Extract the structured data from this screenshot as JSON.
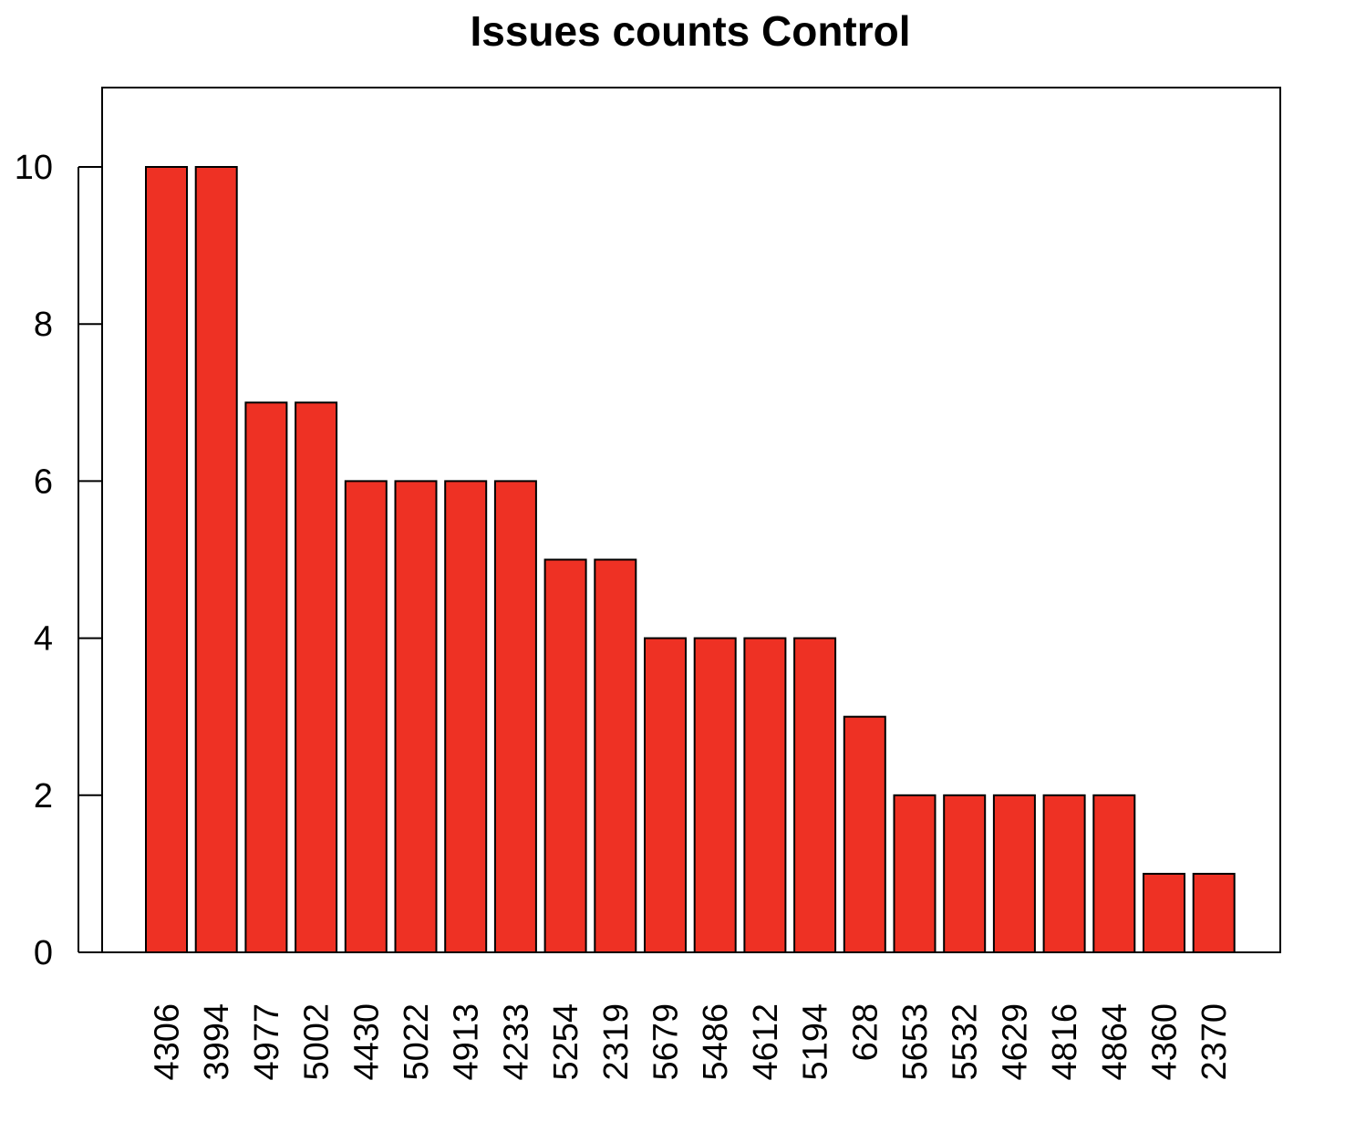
{
  "chart_data": {
    "type": "bar",
    "title": "Issues counts Control",
    "xlabel": "",
    "ylabel": "",
    "categories": [
      "4306",
      "3994",
      "4977",
      "5002",
      "4430",
      "5022",
      "4913",
      "4233",
      "5254",
      "2319",
      "5679",
      "5486",
      "4612",
      "5194",
      "628",
      "5653",
      "5532",
      "4629",
      "4816",
      "4864",
      "4360",
      "2370"
    ],
    "values": [
      10,
      10,
      7,
      7,
      6,
      6,
      6,
      6,
      5,
      5,
      4,
      4,
      4,
      4,
      3,
      2,
      2,
      2,
      2,
      2,
      1,
      1
    ],
    "ylim": [
      0,
      11
    ],
    "yticks": [
      0,
      2,
      4,
      6,
      8,
      10
    ],
    "bar_color": "#ee3124",
    "bar_edge_color": "#000000",
    "grid": false,
    "legend": "none"
  }
}
